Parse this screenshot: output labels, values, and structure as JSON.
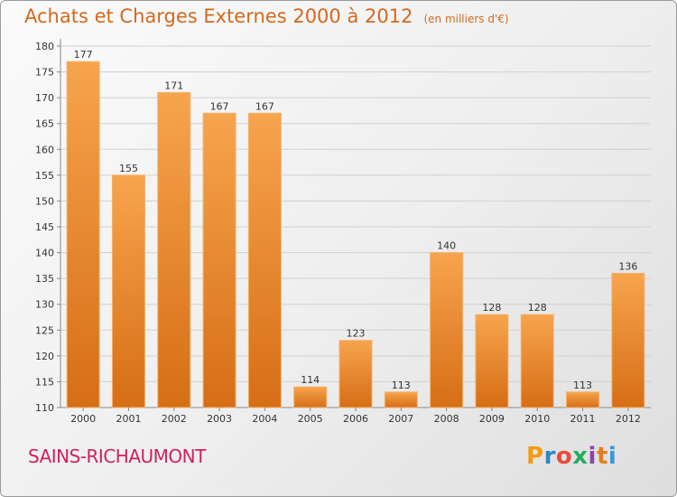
{
  "chart_data": {
    "type": "bar",
    "title": "Achats et Charges Externes 2000 à 2012",
    "unit_label": "(en milliers d'€)",
    "categories": [
      "2000",
      "2001",
      "2002",
      "2003",
      "2004",
      "2005",
      "2006",
      "2007",
      "2008",
      "2009",
      "2010",
      "2011",
      "2012"
    ],
    "values": [
      177,
      155,
      171,
      167,
      167,
      114,
      123,
      113,
      140,
      128,
      128,
      113,
      136
    ],
    "ylim": [
      110,
      180
    ],
    "yticks": [
      110,
      115,
      120,
      125,
      130,
      135,
      140,
      145,
      150,
      155,
      160,
      165,
      170,
      175,
      180
    ],
    "grid": true,
    "bar_color": "#f0933a",
    "title_color": "#d2691e"
  },
  "footer": {
    "place": "SAINS-RICHAUMONT",
    "logo_letters": [
      "P",
      "r",
      "o",
      "x",
      "i",
      "t",
      "i"
    ],
    "logo_colors": [
      "#f39c12",
      "#2e86c1",
      "#e74c3c",
      "#27ae60",
      "#8e44ad",
      "#e67e22",
      "#3498db"
    ]
  }
}
